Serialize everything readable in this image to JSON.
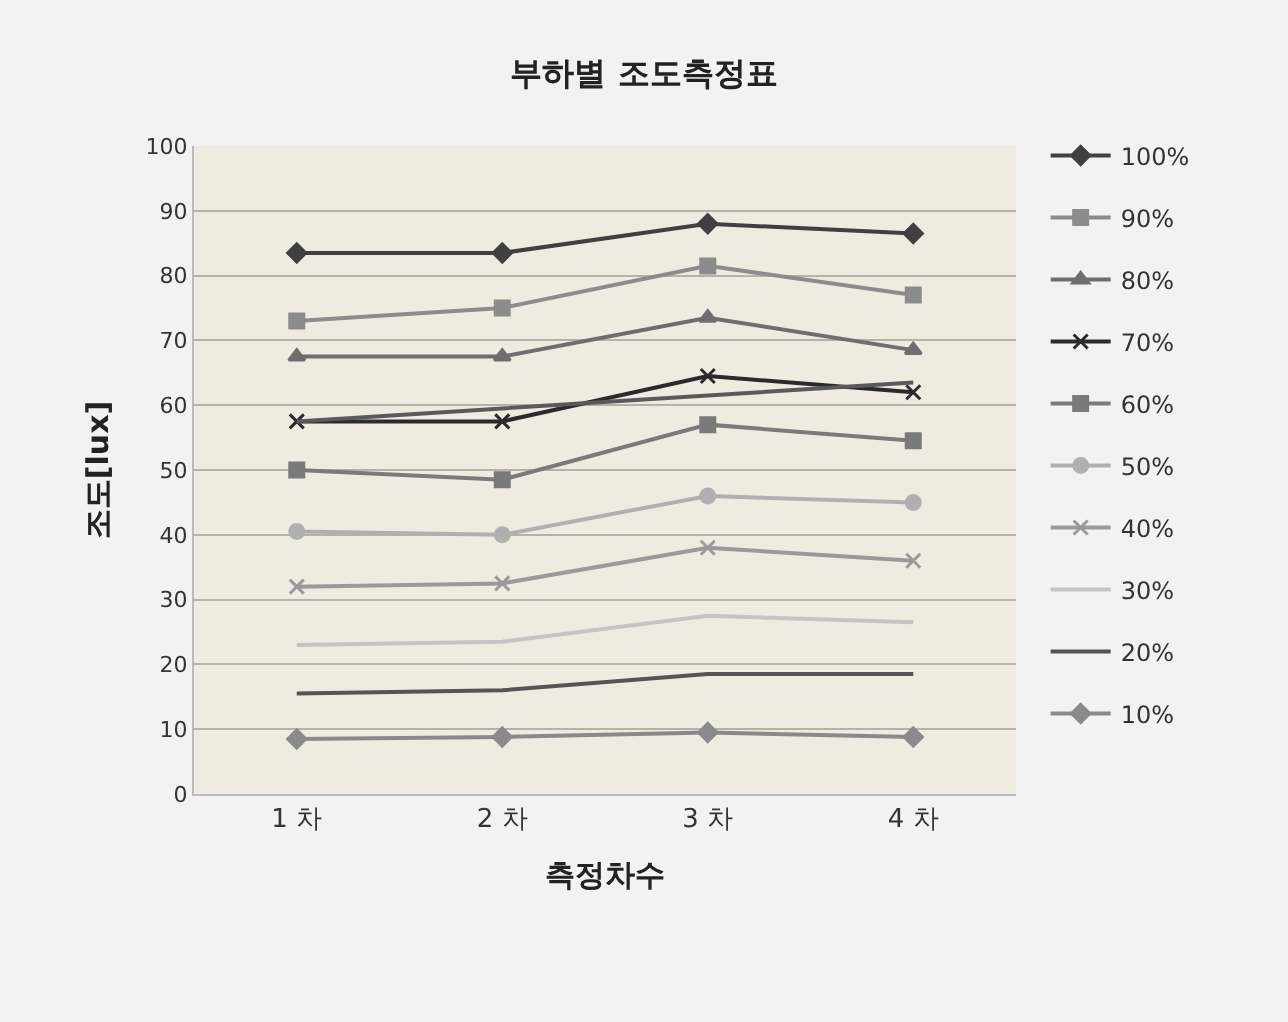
{
  "chart_data": {
    "type": "line",
    "title": "부하별 조도측정표",
    "xlabel": "측정차수",
    "ylabel": "조도[lux]",
    "categories": [
      "1 차",
      "2 차",
      "3 차",
      "4 차"
    ],
    "ylim": [
      0,
      100
    ],
    "yticks": [
      0,
      10,
      20,
      30,
      40,
      50,
      60,
      70,
      80,
      90,
      100
    ],
    "grid": "y",
    "legend": "right",
    "line_style": "solid",
    "series": [
      {
        "name": "100%",
        "color": "#404040",
        "marker": "diamond",
        "values": [
          83.5,
          83.5,
          88,
          86.5
        ]
      },
      {
        "name": "90%",
        "color": "#8c8c8c",
        "marker": "square",
        "values": [
          73,
          75,
          81.5,
          77
        ]
      },
      {
        "name": "80%",
        "color": "#6e6e6e",
        "marker": "triangle",
        "values": [
          67.5,
          67.5,
          73.5,
          68.5
        ]
      },
      {
        "name": "70%",
        "color": "#2a2a2a",
        "marker": "cross",
        "values": [
          57.5,
          57.5,
          64.5,
          62
        ]
      },
      {
        "color": "#5a5a5a",
        "marker": "none",
        "values": [
          57.5,
          59.5,
          61.5,
          63.5
        ]
      },
      {
        "name": "60%",
        "color": "#7a7a7a",
        "marker": "square",
        "values": [
          50,
          48.5,
          57,
          54.5
        ]
      },
      {
        "name": "50%",
        "color": "#b0b0b0",
        "marker": "circle",
        "values": [
          40.5,
          40,
          46,
          45
        ]
      },
      {
        "name": "40%",
        "color": "#9a9a9a",
        "marker": "cross",
        "values": [
          32,
          32.5,
          38,
          36
        ]
      },
      {
        "name": "30%",
        "color": "#c4c4c4",
        "marker": "none",
        "values": [
          23,
          23.5,
          27.5,
          26.5
        ]
      },
      {
        "name": "20%",
        "color": "#555555",
        "marker": "none",
        "values": [
          15.5,
          16,
          18.5,
          18.5
        ]
      },
      {
        "name": "10%",
        "color": "#8a8a8a",
        "marker": "diamond",
        "values": [
          8.5,
          8.8,
          9.5,
          8.8
        ]
      }
    ]
  }
}
